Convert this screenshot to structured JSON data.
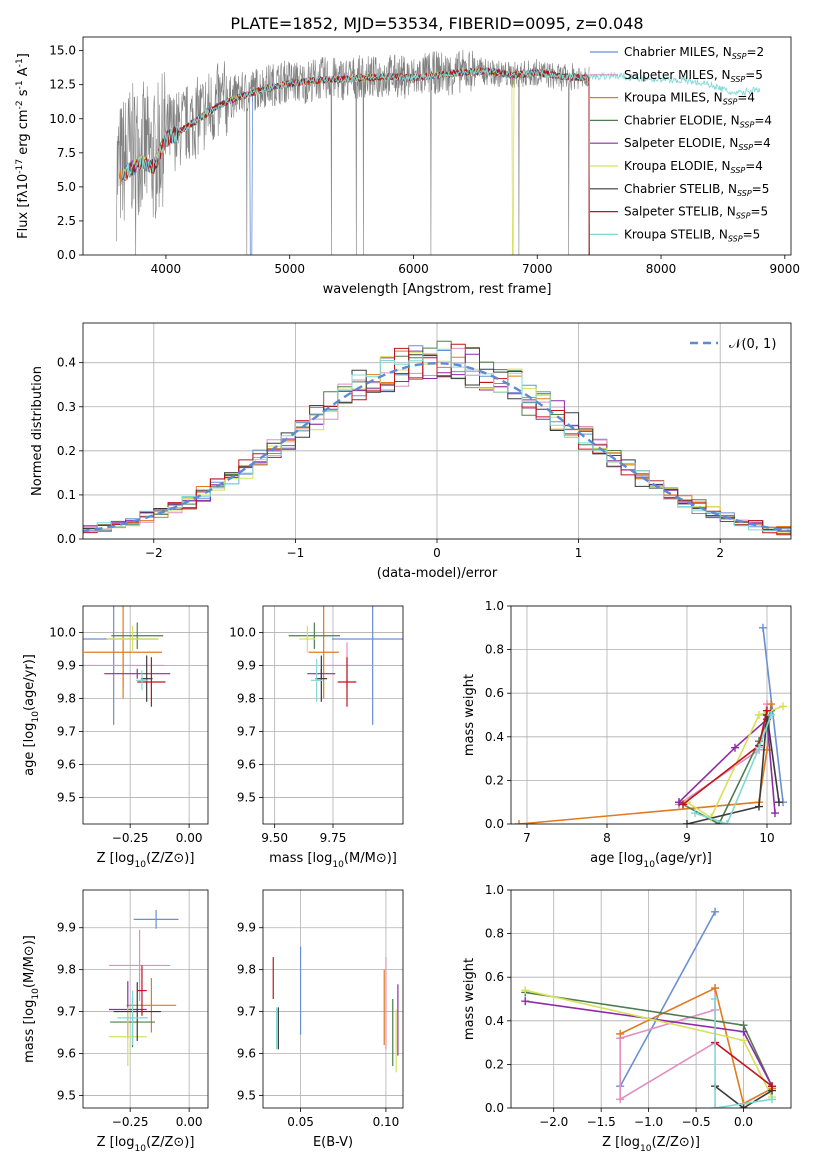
{
  "figure": {
    "title": "PLATE=1852, MJD=53534, FIBERID=0095, z=0.048"
  },
  "legend": [
    {
      "name": "Chabrier MILES, N$_{SSP}$=2",
      "base": "Chabrier MILES, N",
      "sub": "SSP",
      "tail": "=2",
      "color": "#6a8fd6"
    },
    {
      "name": "Salpeter MILES, N$_{SSP}$=5",
      "base": "Salpeter MILES, N",
      "sub": "SSP",
      "tail": "=5",
      "color": "#e38ec0"
    },
    {
      "name": "Kroupa MILES, N$_{SSP}$=4",
      "base": "Kroupa MILES, N",
      "sub": "SSP",
      "tail": "=4",
      "color": "#e07b1e"
    },
    {
      "name": "Chabrier ELODIE, N$_{SSP}$=4",
      "base": "Chabrier ELODIE, N",
      "sub": "SSP",
      "tail": "=4",
      "color": "#4f7d4f"
    },
    {
      "name": "Salpeter ELODIE, N$_{SSP}$=4",
      "base": "Salpeter ELODIE, N",
      "sub": "SSP",
      "tail": "=4",
      "color": "#8e2ca8"
    },
    {
      "name": "Kroupa ELODIE, N$_{SSP}$=4",
      "base": "Kroupa ELODIE, N",
      "sub": "SSP",
      "tail": "=4",
      "color": "#d6e05a"
    },
    {
      "name": "Chabrier STELIB, N$_{SSP}$=5",
      "base": "Chabrier STELIB, N",
      "sub": "SSP",
      "tail": "=5",
      "color": "#3a3a3a"
    },
    {
      "name": "Salpeter STELIB, N$_{SSP}$=5",
      "base": "Salpeter STELIB, N",
      "sub": "SSP",
      "tail": "=5",
      "color": "#c0141c"
    },
    {
      "name": "Kroupa STELIB, N$_{SSP}$=5",
      "base": "Kroupa STELIB, N",
      "sub": "SSP",
      "tail": "=5",
      "color": "#7fd8d8"
    }
  ],
  "chart_data": [
    {
      "id": "spectrum",
      "type": "line",
      "xlabel": "wavelength [Angstrom, rest frame]",
      "ylabel": "Flux [f$_\\lambda$10$^{-17}$ erg cm$^{-2}$ s$^{-1}$ A$^{-1}$]",
      "xlim": [
        3330,
        9050
      ],
      "ylim": [
        0,
        16
      ],
      "xticks": [
        4000,
        5000,
        6000,
        7000,
        8000,
        9000
      ],
      "yticks": [
        0.0,
        2.5,
        5.0,
        7.5,
        10.0,
        12.5,
        15.0
      ],
      "ytick_labels": [
        "0.0",
        "2.5",
        "5.0",
        "7.5",
        "10.0",
        "12.5",
        "15.0"
      ],
      "grid": false,
      "legend_position": "right",
      "data_series": {
        "name": "data",
        "color": "#808080",
        "x": [
          3600,
          3700,
          3800,
          3900,
          4000,
          4100,
          4200,
          4300,
          4400,
          4500,
          4600,
          4700,
          4800,
          4900,
          5000,
          5100,
          5200,
          5300,
          5400,
          5500,
          5600,
          5700,
          5800,
          5900,
          6000,
          6100,
          6200,
          6300,
          6400,
          6500,
          6600,
          6700,
          6800,
          6900,
          7000,
          7100,
          7200,
          7300,
          7400
        ],
        "y": [
          6.0,
          7.5,
          8.0,
          7.0,
          9.0,
          9.2,
          9.8,
          10.4,
          11.0,
          11.5,
          11.8,
          12.1,
          12.4,
          12.6,
          12.8,
          12.6,
          12.9,
          13.0,
          12.9,
          13.0,
          13.1,
          13.0,
          13.2,
          13.1,
          13.0,
          13.3,
          13.4,
          13.3,
          13.5,
          13.6,
          13.4,
          13.3,
          13.2,
          13.3,
          13.4,
          13.2,
          13.0,
          13.1,
          13.3
        ]
      },
      "model": {
        "name": "Kroupa STELIB model",
        "color": "#7fd8d8",
        "x": [
          3600,
          3700,
          3800,
          3900,
          4000,
          4100,
          4200,
          4300,
          4400,
          4500,
          4600,
          4700,
          4800,
          4900,
          5000,
          5200,
          5400,
          5600,
          5800,
          6000,
          6200,
          6400,
          6600,
          6800,
          7000,
          7200,
          7400,
          7600,
          7800,
          8000,
          8200,
          8400,
          8600,
          8800
        ],
        "y": [
          5.5,
          6.2,
          6.8,
          6.5,
          8.5,
          9.0,
          9.6,
          10.2,
          10.8,
          11.3,
          11.6,
          11.9,
          12.2,
          12.4,
          12.6,
          12.8,
          12.9,
          13.0,
          13.1,
          13.0,
          13.2,
          13.4,
          13.5,
          13.2,
          13.4,
          13.1,
          13.0,
          13.2,
          13.0,
          12.9,
          12.8,
          12.5,
          11.8,
          12.2
        ]
      }
    },
    {
      "id": "residuals",
      "type": "histogram",
      "xlabel": "(data-model)/error",
      "ylabel": "Normed distribution",
      "xlim": [
        -2.5,
        2.5
      ],
      "ylim": [
        0,
        0.49
      ],
      "xticks": [
        -2,
        -1,
        0,
        1,
        2
      ],
      "xtick_labels": [
        "−2",
        "−1",
        "0",
        "1",
        "2"
      ],
      "yticks": [
        0.0,
        0.1,
        0.2,
        0.3,
        0.4
      ],
      "ytick_labels": [
        "0.0",
        "0.1",
        "0.2",
        "0.3",
        "0.4"
      ],
      "grid": true,
      "legend_position": "top-right",
      "gaussian_label": "𝒩(0, 1)",
      "gaussian_color": "#5b8bd6",
      "bin_width": 0.1
    },
    {
      "id": "age-vs-Z",
      "type": "errorbar",
      "xlabel": "Z [log$_{10}$(Z/Z$_\\odot$)]",
      "ylabel": "age  [log$_{10}$(age/yr)]",
      "xlim": [
        -0.45,
        0.08
      ],
      "ylim": [
        9.42,
        10.08
      ],
      "xticks": [
        -0.25,
        0.0
      ],
      "xtick_labels": [
        "−0.25",
        "0.00"
      ],
      "yticks": [
        9.5,
        9.6,
        9.7,
        9.8,
        9.9,
        10.0
      ],
      "ytick_labels": [
        "9.5",
        "9.6",
        "9.7",
        "9.8",
        "9.9",
        "10.0"
      ],
      "grid": true,
      "points": [
        {
          "x": -0.32,
          "y": 9.98,
          "xerr": 0.38,
          "yerr": 0.52,
          "color": "#6a8fd6"
        },
        {
          "x": -0.28,
          "y": 9.9,
          "xerr": 0.35,
          "yerr": 0.14,
          "color": "#e38ec0"
        },
        {
          "x": -0.28,
          "y": 9.94,
          "xerr": 0.33,
          "yerr": 0.28,
          "color": "#e07b1e"
        },
        {
          "x": -0.22,
          "y": 9.99,
          "xerr": 0.22,
          "yerr": 0.08,
          "color": "#4f7d4f"
        },
        {
          "x": -0.22,
          "y": 9.875,
          "xerr": 0.28,
          "yerr": 0.03,
          "color": "#8e2ca8"
        },
        {
          "x": -0.24,
          "y": 9.98,
          "xerr": 0.22,
          "yerr": 0.08,
          "color": "#d6e05a"
        },
        {
          "x": -0.18,
          "y": 9.86,
          "xerr": 0.05,
          "yerr": 0.14,
          "color": "#3a3a3a"
        },
        {
          "x": -0.16,
          "y": 9.85,
          "xerr": 0.12,
          "yerr": 0.15,
          "color": "#c0141c"
        },
        {
          "x": -0.2,
          "y": 9.855,
          "xerr": 0.05,
          "yerr": 0.06,
          "color": "#7fd8d8"
        }
      ]
    },
    {
      "id": "age-vs-mass",
      "type": "errorbar",
      "xlabel": "mass [log$_{10}$(M/M$_\\odot$)]",
      "ylabel": "",
      "xlim": [
        9.45,
        10.05
      ],
      "ylim": [
        9.42,
        10.08
      ],
      "xticks": [
        9.5,
        9.75
      ],
      "xtick_labels": [
        "9.50",
        "9.75"
      ],
      "yticks": [
        9.5,
        9.6,
        9.7,
        9.8,
        9.9,
        10.0
      ],
      "ytick_labels": [
        "9.5",
        "9.6",
        "9.7",
        "9.8",
        "9.9",
        "10.0"
      ],
      "grid": true,
      "points": [
        {
          "x": 9.92,
          "y": 9.98,
          "xerr": 0.35,
          "yerr": 0.52,
          "color": "#6a8fd6"
        },
        {
          "x": 9.81,
          "y": 9.9,
          "xerr": 0.22,
          "yerr": 0.14,
          "color": "#e38ec0"
        },
        {
          "x": 9.71,
          "y": 9.94,
          "xerr": 0.13,
          "yerr": 0.28,
          "color": "#e07b1e"
        },
        {
          "x": 9.67,
          "y": 9.99,
          "xerr": 0.22,
          "yerr": 0.08,
          "color": "#4f7d4f"
        },
        {
          "x": 9.7,
          "y": 9.875,
          "xerr": 0.12,
          "yerr": 0.03,
          "color": "#8e2ca8"
        },
        {
          "x": 9.64,
          "y": 9.98,
          "xerr": 0.07,
          "yerr": 0.08,
          "color": "#d6e05a"
        },
        {
          "x": 9.7,
          "y": 9.86,
          "xerr": 0.05,
          "yerr": 0.14,
          "color": "#3a3a3a"
        },
        {
          "x": 9.81,
          "y": 9.85,
          "xerr": 0.08,
          "yerr": 0.15,
          "color": "#c0141c"
        },
        {
          "x": 9.68,
          "y": 9.855,
          "xerr": 0.05,
          "yerr": 0.13,
          "color": "#7fd8d8"
        }
      ]
    },
    {
      "id": "weight-vs-age",
      "type": "line",
      "xlabel": "age  [log$_{10}$(age/yr)]",
      "ylabel": "mass weight",
      "xlim": [
        6.8,
        10.3
      ],
      "ylim": [
        0,
        1.0
      ],
      "xticks": [
        7,
        8,
        9,
        10
      ],
      "xtick_labels": [
        "7",
        "8",
        "9",
        "10"
      ],
      "yticks": [
        0.0,
        0.2,
        0.4,
        0.6,
        0.8,
        1.0
      ],
      "ytick_labels": [
        "0.0",
        "0.2",
        "0.4",
        "0.6",
        "0.8",
        "1.0"
      ],
      "grid": true,
      "series": [
        {
          "color": "#6a8fd6",
          "x": [
            10.2,
            9.95
          ],
          "y": [
            0.1,
            0.9
          ]
        },
        {
          "color": "#e38ec0",
          "x": [
            8.9,
            9.9,
            10.0
          ],
          "y": [
            0.09,
            0.34,
            0.55
          ]
        },
        {
          "color": "#e07b1e",
          "x": [
            6.9,
            9.9,
            10.0,
            10.05
          ],
          "y": [
            0.0,
            0.1,
            0.34,
            0.55
          ]
        },
        {
          "color": "#4f7d4f",
          "x": [
            8.9,
            9.4,
            9.9,
            10.05
          ],
          "y": [
            0.1,
            0.0,
            0.38,
            0.52
          ]
        },
        {
          "color": "#8e2ca8",
          "x": [
            8.9,
            9.6,
            10.0,
            10.1
          ],
          "y": [
            0.1,
            0.35,
            0.48,
            0.05
          ]
        },
        {
          "color": "#d6e05a",
          "x": [
            9.0,
            9.3,
            9.9,
            10.2
          ],
          "y": [
            0.1,
            0.03,
            0.5,
            0.54
          ]
        },
        {
          "color": "#3a3a3a",
          "x": [
            9.0,
            9.9,
            10.0,
            10.15
          ],
          "y": [
            0.0,
            0.08,
            0.5,
            0.1
          ]
        },
        {
          "color": "#c0141c",
          "x": [
            8.95,
            9.9,
            10.0
          ],
          "y": [
            0.09,
            0.36,
            0.52
          ]
        },
        {
          "color": "#7fd8d8",
          "x": [
            9.1,
            9.5,
            9.9,
            10.05
          ],
          "y": [
            0.05,
            0.0,
            0.35,
            0.5
          ]
        }
      ]
    },
    {
      "id": "mass-vs-Z",
      "type": "errorbar",
      "xlabel": "Z [log$_{10}$(Z/Z$_\\odot$)]",
      "ylabel": "mass [log$_{10}$(M/M$_\\odot$)]",
      "xlim": [
        -0.45,
        0.08
      ],
      "ylim": [
        9.47,
        9.99
      ],
      "xticks": [
        -0.25,
        0.0
      ],
      "xtick_labels": [
        "−0.25",
        "0.00"
      ],
      "yticks": [
        9.5,
        9.6,
        9.7,
        9.8,
        9.9
      ],
      "ytick_labels": [
        "9.5",
        "9.6",
        "9.7",
        "9.8",
        "9.9"
      ],
      "grid": true,
      "points": [
        {
          "x": -0.14,
          "y": 9.92,
          "xerr": 0.19,
          "yerr": 0.045,
          "color": "#6a8fd6"
        },
        {
          "x": -0.21,
          "y": 9.81,
          "xerr": 0.26,
          "yerr": 0.17,
          "color": "#e38ec0"
        },
        {
          "x": -0.16,
          "y": 9.715,
          "xerr": 0.21,
          "yerr": 0.13,
          "color": "#e07b1e"
        },
        {
          "x": -0.24,
          "y": 9.675,
          "xerr": 0.19,
          "yerr": 0.12,
          "color": "#4f7d4f"
        },
        {
          "x": -0.26,
          "y": 9.705,
          "xerr": 0.16,
          "yerr": 0.135,
          "color": "#8e2ca8"
        },
        {
          "x": -0.26,
          "y": 9.64,
          "xerr": 0.16,
          "yerr": 0.14,
          "color": "#d6e05a"
        },
        {
          "x": -0.22,
          "y": 9.7,
          "xerr": 0.2,
          "yerr": 0.14,
          "color": "#3a3a3a"
        },
        {
          "x": -0.2,
          "y": 9.75,
          "xerr": 0.04,
          "yerr": 0.12,
          "color": "#c0141c"
        },
        {
          "x": -0.24,
          "y": 9.685,
          "xerr": 0.13,
          "yerr": 0.13,
          "color": "#7fd8d8"
        }
      ]
    },
    {
      "id": "mass-vs-EBV",
      "type": "errorbar",
      "xlabel": "E(B-V)",
      "ylabel": "",
      "xlim": [
        0.028,
        0.11
      ],
      "ylim": [
        9.47,
        9.99
      ],
      "xticks": [
        0.05,
        0.1
      ],
      "xtick_labels": [
        "0.05",
        "0.10"
      ],
      "yticks": [
        9.5,
        9.6,
        9.7,
        9.8,
        9.9
      ],
      "ytick_labels": [
        "9.5",
        "9.6",
        "9.7",
        "9.8",
        "9.9"
      ],
      "grid": true,
      "points": [
        {
          "x": 0.05,
          "y": 9.75,
          "xerr": 0,
          "yerr": 0.21,
          "color": "#6a8fd6"
        },
        {
          "x": 0.1,
          "y": 9.72,
          "xerr": 0,
          "yerr": 0.22,
          "color": "#e38ec0"
        },
        {
          "x": 0.099,
          "y": 9.71,
          "xerr": 0,
          "yerr": 0.18,
          "color": "#e07b1e"
        },
        {
          "x": 0.104,
          "y": 9.65,
          "xerr": 0,
          "yerr": 0.16,
          "color": "#4f7d4f"
        },
        {
          "x": 0.107,
          "y": 9.68,
          "xerr": 0,
          "yerr": 0.17,
          "color": "#8e2ca8"
        },
        {
          "x": 0.106,
          "y": 9.63,
          "xerr": 0,
          "yerr": 0.15,
          "color": "#d6e05a"
        },
        {
          "x": 0.037,
          "y": 9.66,
          "xerr": 0,
          "yerr": 0.1,
          "color": "#3a3a3a"
        },
        {
          "x": 0.034,
          "y": 9.78,
          "xerr": 0,
          "yerr": 0.1,
          "color": "#c0141c"
        },
        {
          "x": 0.036,
          "y": 9.66,
          "xerr": 0,
          "yerr": 0.1,
          "color": "#7fd8d8"
        }
      ]
    },
    {
      "id": "weight-vs-Z",
      "type": "line",
      "xlabel": "Z [log$_{10}$(Z/Z$_\\odot$)]",
      "ylabel": "mass weight",
      "xlim": [
        -2.45,
        0.5
      ],
      "ylim": [
        0,
        1.0
      ],
      "xticks": [
        -2.0,
        -1.5,
        -1.0,
        -0.5,
        0.0
      ],
      "xtick_labels": [
        "−2.0",
        "−1.5",
        "−1.0",
        "−0.5",
        "0.0"
      ],
      "yticks": [
        0.0,
        0.2,
        0.4,
        0.6,
        0.8,
        1.0
      ],
      "ytick_labels": [
        "0.0",
        "0.2",
        "0.4",
        "0.6",
        "0.8",
        "1.0"
      ],
      "grid": true,
      "series": [
        {
          "color": "#6a8fd6",
          "x": [
            -1.3,
            -0.3
          ],
          "y": [
            0.1,
            0.9
          ]
        },
        {
          "color": "#e38ec0",
          "x": [
            -0.3,
            -0.3,
            -1.3,
            -1.3,
            -0.3
          ],
          "y": [
            0.55,
            0.3,
            0.04,
            0.32,
            0.45
          ]
        },
        {
          "color": "#e07b1e",
          "x": [
            -1.3,
            -0.3,
            0.0,
            0.3
          ],
          "y": [
            0.34,
            0.55,
            0.02,
            0.09
          ]
        },
        {
          "color": "#4f7d4f",
          "x": [
            -2.3,
            0.0,
            0.3
          ],
          "y": [
            0.53,
            0.38,
            0.1
          ]
        },
        {
          "color": "#8e2ca8",
          "x": [
            -2.3,
            0.0,
            0.3
          ],
          "y": [
            0.49,
            0.35,
            0.1
          ]
        },
        {
          "color": "#d6e05a",
          "x": [
            -2.3,
            0.0,
            0.3
          ],
          "y": [
            0.54,
            0.31,
            0.05
          ]
        },
        {
          "color": "#3a3a3a",
          "x": [
            -0.3,
            0.0,
            0.3
          ],
          "y": [
            0.1,
            0.0,
            0.08
          ]
        },
        {
          "color": "#c0141c",
          "x": [
            -0.3,
            0.3
          ],
          "y": [
            0.3,
            0.1
          ]
        },
        {
          "color": "#7fd8d8",
          "x": [
            -0.3,
            -0.3,
            0.3
          ],
          "y": [
            0.5,
            0.0,
            0.04
          ]
        }
      ]
    }
  ]
}
